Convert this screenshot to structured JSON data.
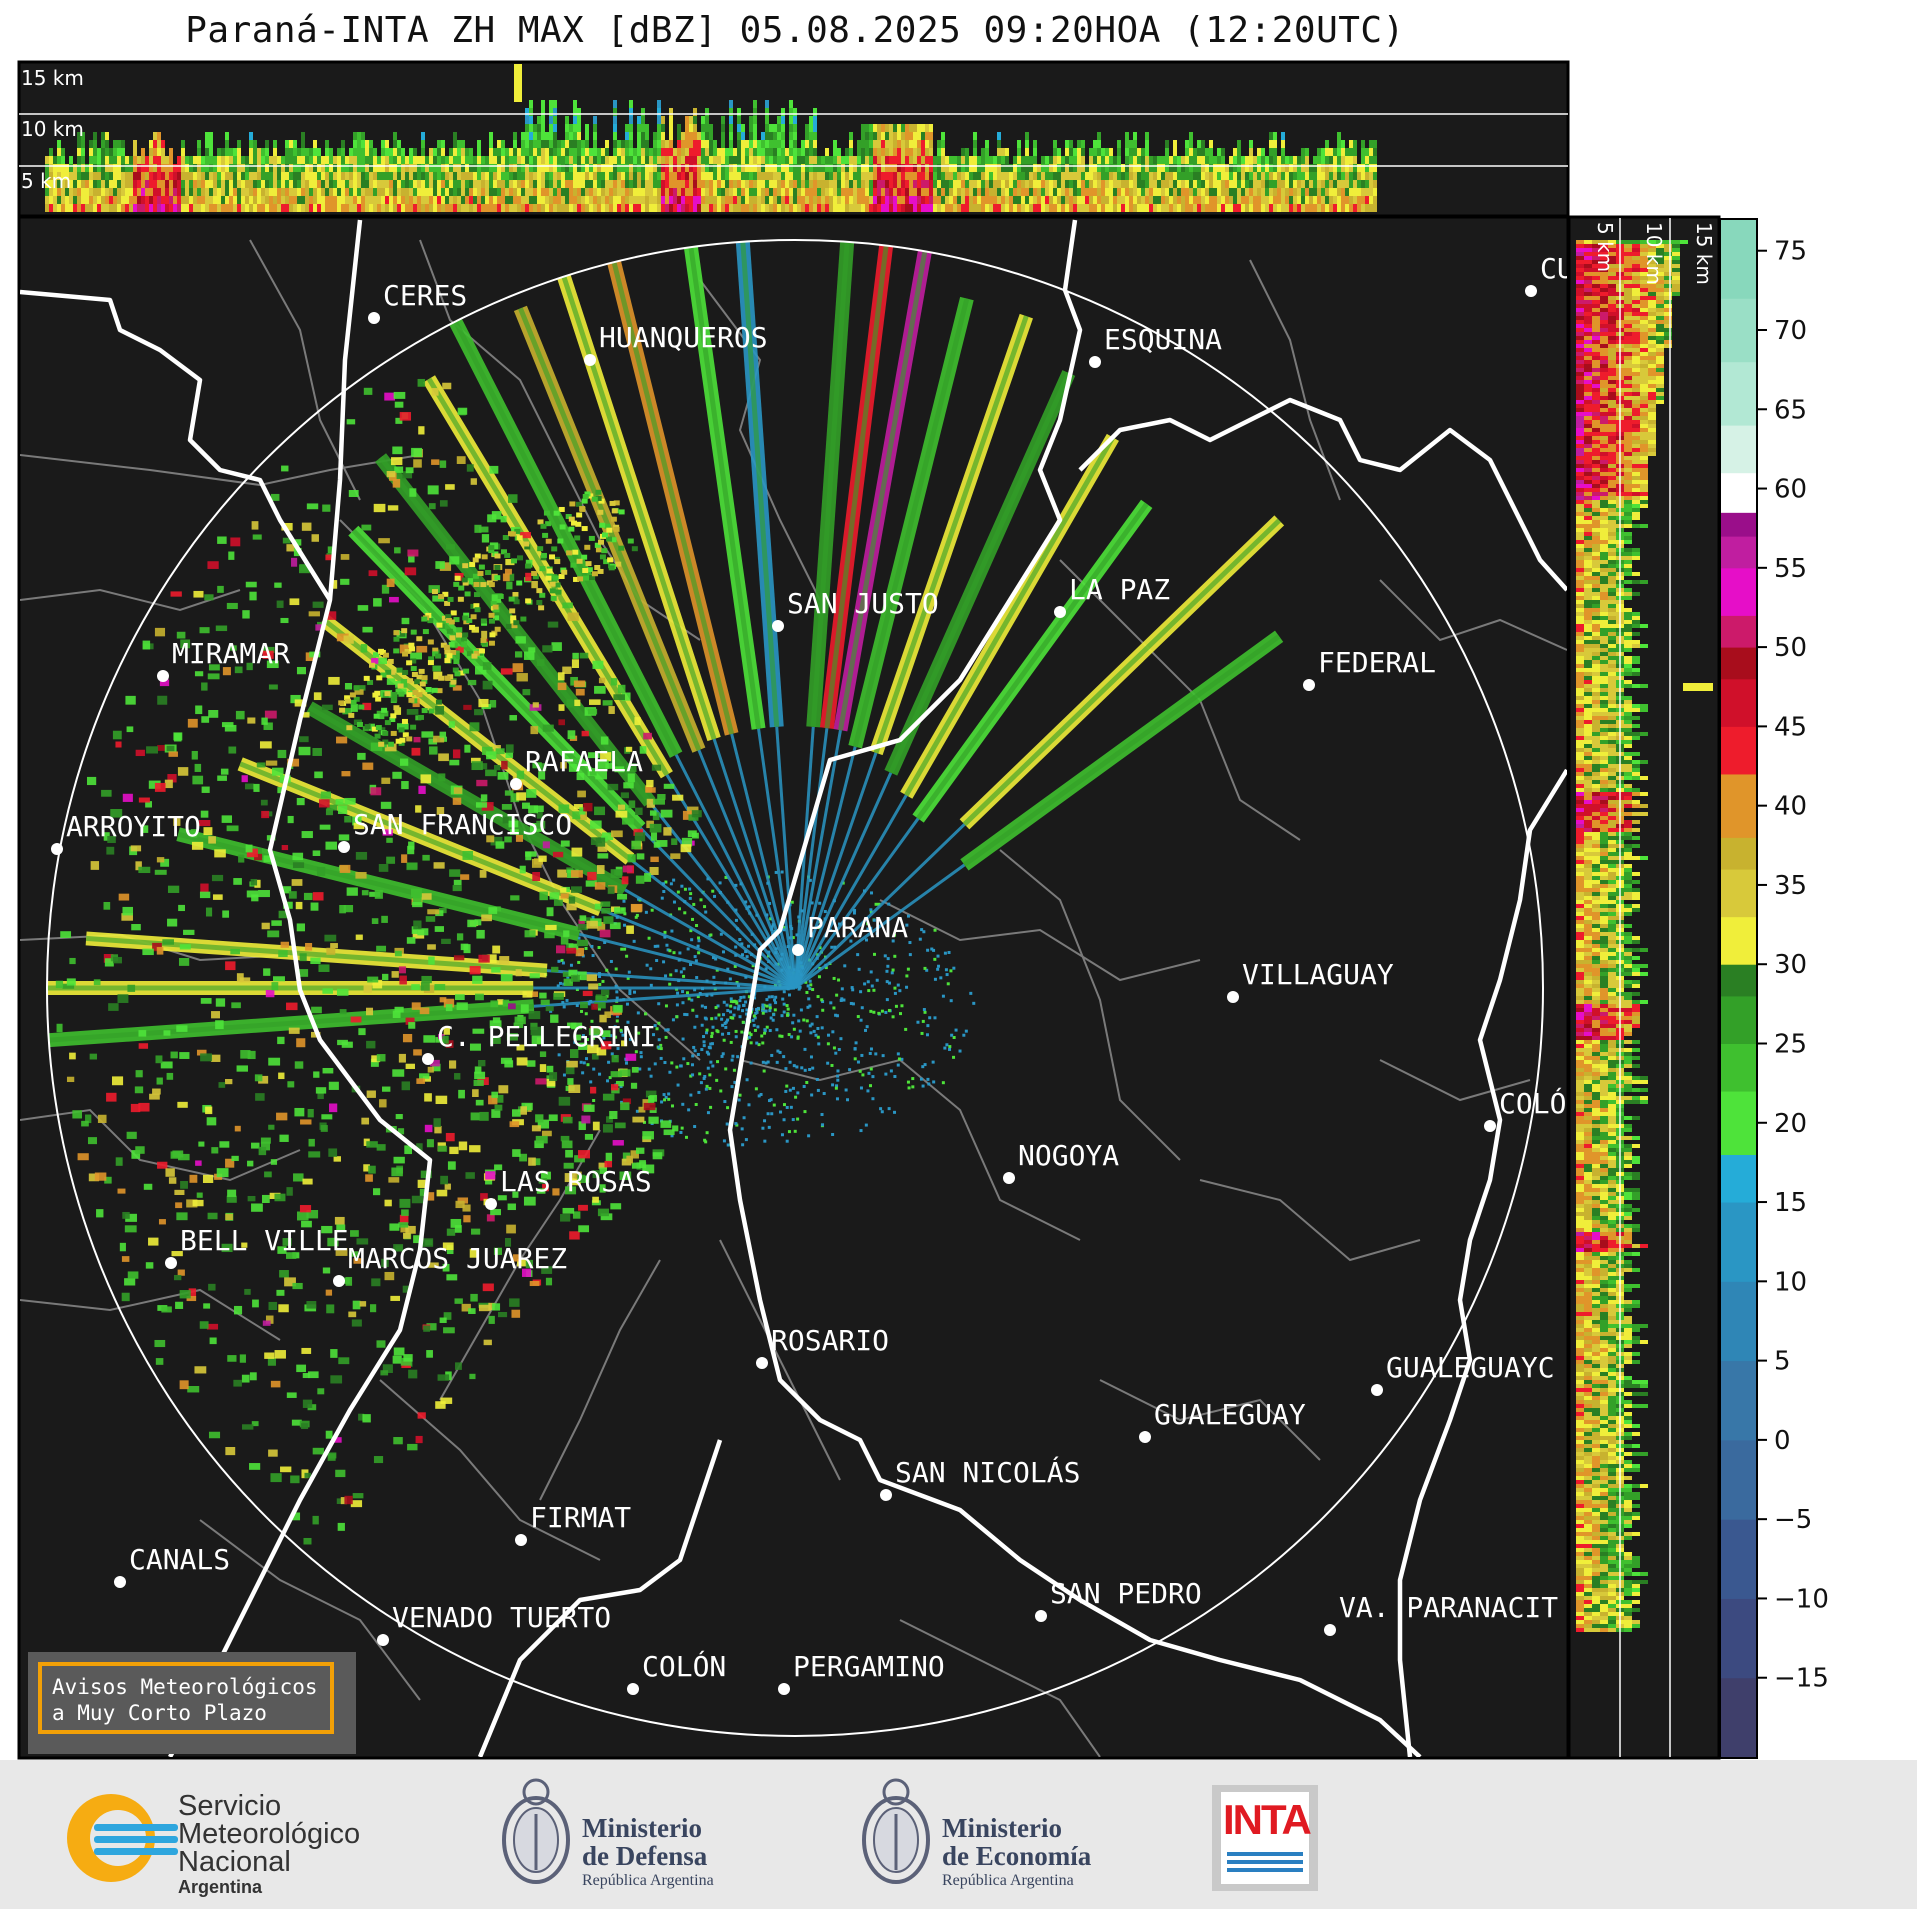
{
  "title": "Paraná-INTA ZH MAX [dBZ] 05.08.2025 09:20HOA (12:20UTC)",
  "top_panel": {
    "height_labels": [
      "15 km",
      "10 km",
      "5 km"
    ]
  },
  "side_panel": {
    "height_labels": [
      "5 km",
      "10 km",
      "15 km"
    ]
  },
  "cities": [
    {
      "name": "CERES"
    },
    {
      "name": "HUANQUEROS"
    },
    {
      "name": "ESQUINA"
    },
    {
      "name": "CU"
    },
    {
      "name": "MIRAMAR"
    },
    {
      "name": "SAN JUSTO"
    },
    {
      "name": "LA PAZ"
    },
    {
      "name": "FEDERAL"
    },
    {
      "name": "RAFAELA"
    },
    {
      "name": "ARROYITO"
    },
    {
      "name": "SAN FRANCISCO"
    },
    {
      "name": "PARANA"
    },
    {
      "name": "VILLAGUAY"
    },
    {
      "name": "C. PELLEGRINI"
    },
    {
      "name": "COLÓ"
    },
    {
      "name": "NOGOYA"
    },
    {
      "name": "LAS ROSAS"
    },
    {
      "name": "BELL VILLE"
    },
    {
      "name": "MARCOS JUAREZ"
    },
    {
      "name": "ROSARIO"
    },
    {
      "name": "GUALEGUAYC"
    },
    {
      "name": "GUALEGUAY"
    },
    {
      "name": "SAN NICOLÁS"
    },
    {
      "name": "FIRMAT"
    },
    {
      "name": "CANALS"
    },
    {
      "name": "SAN PEDRO"
    },
    {
      "name": "VA. PARANACIT"
    },
    {
      "name": "VENADO TUERTO"
    },
    {
      "name": "COLÓN"
    },
    {
      "name": "PERGAMINO"
    }
  ],
  "notice": {
    "line1": "Avisos Meteorológicos",
    "line2": "a Muy Corto Plazo"
  },
  "colorbar": {
    "unit": "dBZ",
    "ticks": [
      "75",
      "70",
      "65",
      "60",
      "55",
      "50",
      "45",
      "40",
      "35",
      "30",
      "25",
      "20",
      "15",
      "10",
      "5",
      "0",
      "−5",
      "−10",
      "−15"
    ],
    "range": [
      -20,
      77
    ],
    "stops": [
      {
        "from": -20,
        "color": "#3f3f6b"
      },
      {
        "from": -15,
        "color": "#3c4a80"
      },
      {
        "from": -10,
        "color": "#3a5890"
      },
      {
        "from": -5,
        "color": "#3a6a9e"
      },
      {
        "from": 0,
        "color": "#3877a8"
      },
      {
        "from": 5,
        "color": "#2f86b6"
      },
      {
        "from": 10,
        "color": "#2a96c4"
      },
      {
        "from": 15,
        "color": "#25acd8"
      },
      {
        "from": 18,
        "color": "#4ee33a"
      },
      {
        "from": 22,
        "color": "#3fc02f"
      },
      {
        "from": 25,
        "color": "#33a028"
      },
      {
        "from": 28,
        "color": "#2a7f23"
      },
      {
        "from": 30,
        "color": "#f0ee3a"
      },
      {
        "from": 33,
        "color": "#d8c93a"
      },
      {
        "from": 36,
        "color": "#c8b22f"
      },
      {
        "from": 38,
        "color": "#e0952a"
      },
      {
        "from": 42,
        "color": "#ee1c2c"
      },
      {
        "from": 45,
        "color": "#d0102a"
      },
      {
        "from": 48,
        "color": "#a80d1c"
      },
      {
        "from": 50,
        "color": "#cc1a6a"
      },
      {
        "from": 52,
        "color": "#e60ec8"
      },
      {
        "from": 55,
        "color": "#c01ea0"
      },
      {
        "from": 57,
        "color": "#9a0e8a"
      },
      {
        "from": 58.5,
        "color": "#ffffff"
      },
      {
        "from": 61,
        "color": "#d6f2e6"
      },
      {
        "from": 64,
        "color": "#b2e8d4"
      },
      {
        "from": 68,
        "color": "#9adfc6"
      },
      {
        "from": 72,
        "color": "#88d8bc"
      }
    ]
  },
  "footer": {
    "smn": {
      "line1": "Servicio",
      "line2": "Meteorológico",
      "line3": "Nacional",
      "line4": "Argentina"
    },
    "defensa": {
      "line1": "Ministerio",
      "line2": "de Defensa",
      "line3": "República Argentina"
    },
    "economia": {
      "line1": "Ministerio",
      "line2": "de Economía",
      "line3": "República Argentina"
    },
    "inta": {
      "label": "INTA"
    }
  },
  "colors": {
    "background": "#1a1a1a",
    "range_ring": "#ffffff",
    "rivers": "#ffffff",
    "borders": "#7a7a7a",
    "notice_border": "#f2a007"
  }
}
